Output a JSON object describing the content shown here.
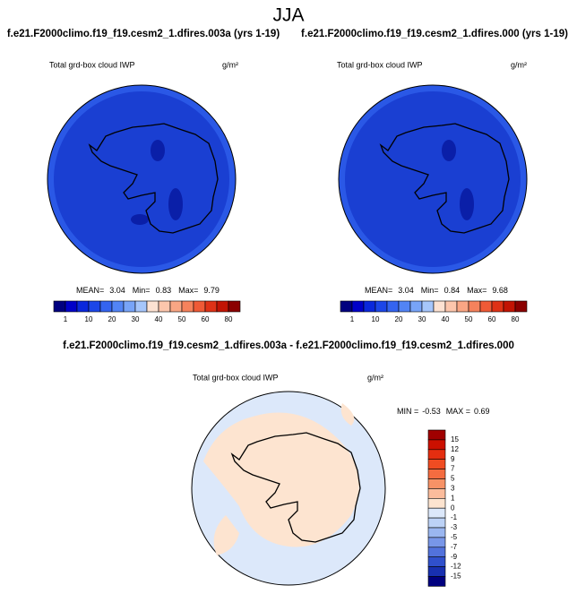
{
  "title": "JJA",
  "panels": [
    {
      "title": "f.e21.F2000climo.f19_f19.cesm2_1.dfires.003a (yrs 1-19)",
      "variable": "Total grd-box cloud IWP",
      "units": "g/m²",
      "stats": {
        "mean_label": "MEAN=",
        "mean": 3.04,
        "min_label": "Min=",
        "min": 0.83,
        "max_label": "Max=",
        "max": 9.79
      }
    },
    {
      "title": "f.e21.F2000climo.f19_f19.cesm2_1.dfires.000 (yrs 1-19)",
      "variable": "Total grd-box cloud IWP",
      "units": "g/m²",
      "stats": {
        "mean_label": "MEAN=",
        "mean": 3.04,
        "min_label": "Min=",
        "min": 0.84,
        "max_label": "Max=",
        "max": 9.68
      }
    }
  ],
  "colorbar": {
    "labels": [
      1,
      10,
      20,
      30,
      40,
      50,
      60,
      80
    ],
    "colors": [
      "#00007f",
      "#0000c8",
      "#0a28dc",
      "#1c46e8",
      "#3464f0",
      "#5284f5",
      "#78a4f8",
      "#a6c6fb",
      "#fde2d2",
      "#fcc6ac",
      "#f9a684",
      "#f5825c",
      "#ef5a36",
      "#df3216",
      "#c21404",
      "#8b0000"
    ]
  },
  "difference": {
    "title": "f.e21.F2000climo.f19_f19.cesm2_1.dfires.003a - f.e21.F2000climo.f19_f19.cesm2_1.dfires.000",
    "variable": "Total grd-box cloud IWP",
    "units": "g/m²",
    "stats": {
      "min_label": "MIN =",
      "min": -0.53,
      "max_label": "MAX =",
      "max": 0.69
    },
    "colorbar": {
      "labels": [
        15,
        12,
        9,
        7,
        5,
        3,
        1,
        0,
        -1,
        -3,
        -5,
        -7,
        -9,
        -12,
        -15
      ],
      "colors": [
        "#a00000",
        "#cc1000",
        "#e42e10",
        "#f04c22",
        "#f46c40",
        "#f79266",
        "#fbbc9c",
        "#fde4d0",
        "#dce8fa",
        "#bcd2f6",
        "#9ab6f0",
        "#7896e8",
        "#5272dc",
        "#3050cc",
        "#1830b0",
        "#00007f"
      ]
    }
  }
}
